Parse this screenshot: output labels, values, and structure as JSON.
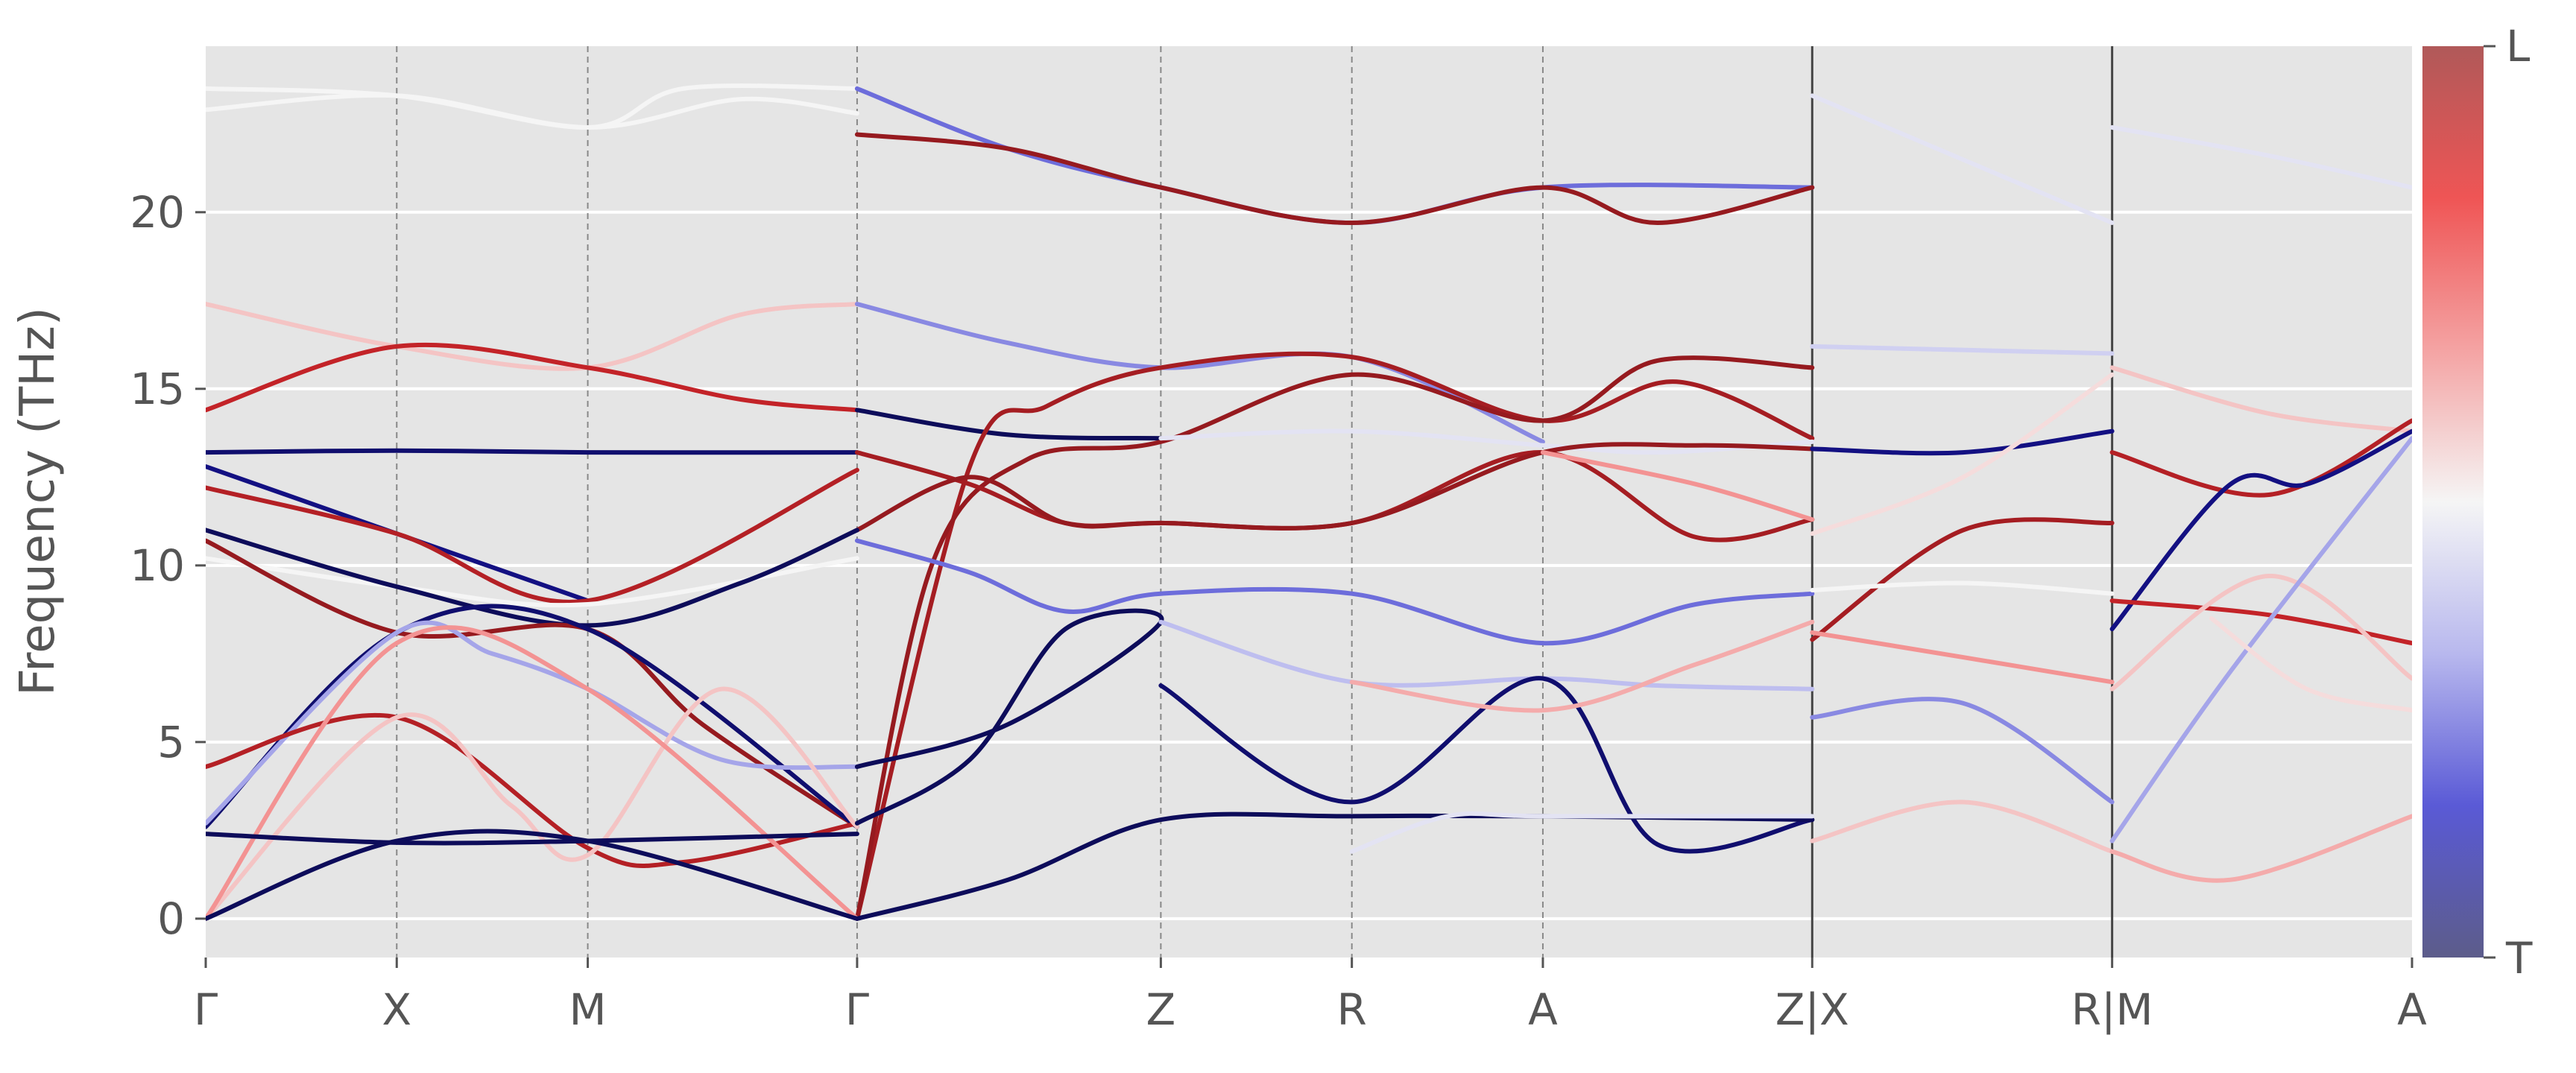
{
  "chart_data": {
    "type": "line",
    "title": "",
    "xlabel": "",
    "ylabel": "Frequency (THz)",
    "ylim": [
      -1.1,
      24.7
    ],
    "yticks": [
      0,
      5,
      10,
      15,
      20
    ],
    "grid": true,
    "axes_background": "#e5e5e5",
    "high_symmetry_points": [
      {
        "label": "Γ",
        "x": 0.0
      },
      {
        "label": "X",
        "x": 1.0
      },
      {
        "label": "M",
        "x": 2.0
      },
      {
        "label": "Γ",
        "x": 3.41
      },
      {
        "label": "Z",
        "x": 5.0
      },
      {
        "label": "R",
        "x": 6.0
      },
      {
        "label": "A",
        "x": 7.0
      },
      {
        "label": "Z|X",
        "x": 8.41
      },
      {
        "label": "R|M",
        "x": 9.98
      },
      {
        "label": "A",
        "x": 11.55
      }
    ],
    "xlim": [
      0,
      11.55
    ],
    "path_breaks": [
      8.41,
      9.98
    ],
    "colorbar": {
      "top_label": "L",
      "bottom_label": "T",
      "colormap": [
        "#5c5c8a",
        "#5a5ad6",
        "#b8b8ee",
        "#f5f5f5",
        "#f4a3a3",
        "#ef5555",
        "#b05959"
      ]
    },
    "series": [
      {
        "c": 0.5,
        "pts": [
          [
            0,
            23.5
          ],
          [
            1,
            23.3
          ],
          [
            2,
            22.4
          ],
          [
            2.5,
            23.5
          ],
          [
            3.41,
            23.5
          ]
        ]
      },
      {
        "c": 0.5,
        "pts": [
          [
            0,
            22.9
          ],
          [
            1,
            23.3
          ],
          [
            2,
            22.4
          ],
          [
            2.8,
            23.2
          ],
          [
            3.41,
            22.8
          ]
        ]
      },
      {
        "c": 0.2,
        "pts": [
          [
            3.41,
            23.5
          ],
          [
            4.2,
            21.8
          ],
          [
            5,
            20.7
          ],
          [
            6,
            19.7
          ],
          [
            7,
            20.7
          ],
          [
            8.41,
            20.7
          ]
        ]
      },
      {
        "c": 0.9,
        "pts": [
          [
            3.41,
            22.2
          ],
          [
            4.2,
            21.8
          ],
          [
            5,
            20.7
          ],
          [
            6,
            19.7
          ],
          [
            7,
            20.7
          ],
          [
            7.6,
            19.7
          ],
          [
            8.41,
            20.7
          ]
        ]
      },
      {
        "c": 0.45,
        "pts": [
          [
            8.41,
            23.3
          ],
          [
            9.98,
            19.7
          ]
        ]
      },
      {
        "c": 0.45,
        "pts": [
          [
            9.98,
            22.4
          ],
          [
            10.8,
            21.6
          ],
          [
            11.55,
            20.7
          ]
        ]
      },
      {
        "c": 0.6,
        "pts": [
          [
            0,
            17.4
          ],
          [
            1,
            16.2
          ],
          [
            2,
            15.6
          ],
          [
            2.8,
            17.1
          ],
          [
            3.41,
            17.4
          ]
        ]
      },
      {
        "c": 0.75,
        "pts": [
          [
            0,
            14.4
          ],
          [
            1,
            16.2
          ],
          [
            2,
            15.6
          ],
          [
            2.8,
            14.7
          ],
          [
            3.41,
            14.4
          ]
        ]
      },
      {
        "c": 0.25,
        "pts": [
          [
            3.41,
            17.4
          ],
          [
            4.2,
            16.3
          ],
          [
            5,
            15.6
          ],
          [
            6,
            15.9
          ],
          [
            7,
            13.5
          ]
        ]
      },
      {
        "c": 0.05,
        "pts": [
          [
            3.41,
            14.4
          ],
          [
            4.2,
            13.7
          ],
          [
            5,
            13.6
          ]
        ]
      },
      {
        "c": 0.85,
        "pts": [
          [
            3.41,
            0
          ],
          [
            4.0,
            12.8
          ],
          [
            4.4,
            14.5
          ],
          [
            5,
            15.6
          ],
          [
            6,
            15.9
          ],
          [
            7,
            14.1
          ],
          [
            7.7,
            15.2
          ],
          [
            8.41,
            13.6
          ]
        ]
      },
      {
        "c": 0.9,
        "pts": [
          [
            3.41,
            0
          ],
          [
            3.8,
            10.0
          ],
          [
            4.3,
            13.0
          ],
          [
            5,
            13.5
          ],
          [
            6,
            15.4
          ],
          [
            7,
            14.1
          ],
          [
            7.6,
            15.8
          ],
          [
            8.41,
            15.6
          ]
        ]
      },
      {
        "c": 0.45,
        "pts": [
          [
            5,
            13.6
          ],
          [
            6,
            13.8
          ],
          [
            7,
            13.4
          ],
          [
            7.6,
            13.2
          ],
          [
            8.41,
            13.5
          ]
        ]
      },
      {
        "c": 0.1,
        "pts": [
          [
            0,
            13.2
          ],
          [
            1,
            13.25
          ],
          [
            2,
            13.2
          ],
          [
            3.41,
            13.2
          ]
        ]
      },
      {
        "c": 0.15,
        "pts": [
          [
            0,
            12.8
          ],
          [
            1,
            10.9
          ],
          [
            2,
            9.0
          ]
        ]
      },
      {
        "c": 0.8,
        "pts": [
          [
            0,
            12.2
          ],
          [
            1,
            10.9
          ],
          [
            2,
            9.0
          ],
          [
            3.41,
            12.7
          ]
        ]
      },
      {
        "c": 0.5,
        "pts": [
          [
            0,
            10.2
          ],
          [
            1,
            9.4
          ],
          [
            2,
            8.9
          ],
          [
            3.41,
            10.2
          ]
        ]
      },
      {
        "c": 0.85,
        "pts": [
          [
            3.41,
            13.2
          ],
          [
            4.0,
            12.3
          ],
          [
            4.5,
            11.2
          ],
          [
            5,
            11.2
          ],
          [
            6,
            11.2
          ],
          [
            7,
            13.2
          ],
          [
            7.8,
            10.8
          ],
          [
            8.41,
            11.3
          ]
        ]
      },
      {
        "c": 0.9,
        "pts": [
          [
            3.41,
            11.0
          ],
          [
            4.0,
            12.5
          ],
          [
            4.5,
            11.2
          ],
          [
            5,
            11.2
          ],
          [
            6,
            11.2
          ],
          [
            7,
            13.2
          ],
          [
            7.8,
            13.4
          ],
          [
            8.41,
            13.3
          ]
        ]
      },
      {
        "c": 0.7,
        "pts": [
          [
            7,
            13.2
          ],
          [
            7.8,
            12.3
          ],
          [
            8.41,
            11.3
          ]
        ]
      },
      {
        "c": 0.4,
        "pts": [
          [
            8.41,
            16.2
          ],
          [
            9.98,
            16.0
          ]
        ]
      },
      {
        "c": 0.15,
        "pts": [
          [
            8.41,
            13.3
          ],
          [
            9.2,
            13.2
          ],
          [
            9.98,
            13.8
          ]
        ]
      },
      {
        "c": 0.85,
        "pts": [
          [
            8.41,
            7.9
          ],
          [
            9.2,
            11.0
          ],
          [
            9.98,
            11.2
          ]
        ]
      },
      {
        "c": 0.55,
        "pts": [
          [
            8.41,
            10.9
          ],
          [
            9.2,
            12.5
          ],
          [
            9.98,
            15.4
          ]
        ]
      },
      {
        "c": 0.6,
        "pts": [
          [
            9.98,
            15.6
          ],
          [
            10.8,
            14.3
          ],
          [
            11.55,
            13.8
          ]
        ]
      },
      {
        "c": 0.8,
        "pts": [
          [
            9.98,
            13.2
          ],
          [
            10.8,
            12.0
          ],
          [
            11.55,
            14.1
          ]
        ]
      },
      {
        "c": 0.05,
        "pts": [
          [
            0,
            11.0
          ],
          [
            1,
            9.4
          ],
          [
            2,
            8.3
          ],
          [
            2.8,
            9.5
          ],
          [
            3.41,
            11.0
          ]
        ]
      },
      {
        "c": 0.9,
        "pts": [
          [
            0,
            10.7
          ],
          [
            1,
            8.1
          ],
          [
            2,
            8.2
          ],
          [
            2.6,
            5.5
          ],
          [
            3.41,
            2.6
          ]
        ]
      },
      {
        "c": 0.1,
        "pts": [
          [
            0,
            2.6
          ],
          [
            1,
            8.1
          ],
          [
            2,
            8.2
          ],
          [
            3.41,
            2.6
          ]
        ]
      },
      {
        "c": 0.3,
        "pts": [
          [
            0,
            2.7
          ],
          [
            1,
            8.1
          ],
          [
            1.5,
            7.5
          ],
          [
            2,
            6.5
          ],
          [
            2.7,
            4.5
          ],
          [
            3.41,
            4.3
          ]
        ]
      },
      {
        "c": 0.8,
        "pts": [
          [
            0,
            4.3
          ],
          [
            1,
            5.7
          ],
          [
            2,
            2.0
          ],
          [
            2.5,
            1.6
          ],
          [
            3.41,
            2.7
          ]
        ]
      },
      {
        "c": 0.6,
        "pts": [
          [
            0,
            0
          ],
          [
            1,
            5.7
          ],
          [
            1.6,
            3.2
          ],
          [
            2,
            1.8
          ],
          [
            2.7,
            6.5
          ],
          [
            3.41,
            2.6
          ]
        ]
      },
      {
        "c": 0.7,
        "pts": [
          [
            0,
            0
          ],
          [
            1,
            7.8
          ],
          [
            2,
            6.5
          ],
          [
            3.41,
            0
          ]
        ]
      },
      {
        "c": 0.05,
        "pts": [
          [
            0,
            0
          ],
          [
            1,
            2.2
          ],
          [
            2,
            2.2
          ],
          [
            3.41,
            0
          ]
        ]
      },
      {
        "c": 0.05,
        "pts": [
          [
            0,
            2.4
          ],
          [
            1,
            2.15
          ],
          [
            2,
            2.2
          ],
          [
            3.41,
            2.4
          ]
        ]
      },
      {
        "c": 0.2,
        "pts": [
          [
            3.41,
            10.7
          ],
          [
            4.0,
            9.8
          ],
          [
            4.5,
            8.7
          ],
          [
            5,
            9.2
          ],
          [
            6,
            9.2
          ],
          [
            7,
            7.8
          ],
          [
            7.8,
            8.9
          ],
          [
            8.41,
            9.2
          ]
        ]
      },
      {
        "c": 0.05,
        "pts": [
          [
            3.41,
            4.3
          ],
          [
            4.2,
            5.5
          ],
          [
            5,
            8.4
          ],
          [
            4.5,
            8.2
          ],
          [
            4.0,
            4.5
          ],
          [
            3.41,
            2.7
          ]
        ]
      },
      {
        "c": 0.35,
        "pts": [
          [
            5,
            8.4
          ],
          [
            6,
            6.7
          ],
          [
            7,
            6.8
          ],
          [
            7.6,
            6.6
          ],
          [
            8.41,
            6.5
          ]
        ]
      },
      {
        "c": 0.1,
        "pts": [
          [
            5,
            6.6
          ],
          [
            6,
            3.3
          ],
          [
            7,
            6.8
          ],
          [
            7.6,
            2.1
          ],
          [
            8.41,
            2.8
          ]
        ]
      },
      {
        "c": 0.05,
        "pts": [
          [
            3.41,
            0
          ],
          [
            4.2,
            1.1
          ],
          [
            5,
            2.8
          ],
          [
            6,
            2.9
          ],
          [
            7,
            2.9
          ],
          [
            8.41,
            2.8
          ]
        ]
      },
      {
        "c": 0.65,
        "pts": [
          [
            6,
            6.7
          ],
          [
            7,
            5.9
          ],
          [
            7.8,
            7.2
          ],
          [
            8.41,
            8.4
          ]
        ]
      },
      {
        "c": 0.45,
        "pts": [
          [
            6,
            1.9
          ],
          [
            6.5,
            2.9
          ],
          [
            7,
            2.9
          ],
          [
            8.41,
            2.9
          ]
        ]
      },
      {
        "c": 0.5,
        "pts": [
          [
            8.41,
            9.3
          ],
          [
            9.2,
            9.5
          ],
          [
            9.98,
            9.2
          ]
        ]
      },
      {
        "c": 0.7,
        "pts": [
          [
            8.41,
            8.1
          ],
          [
            9.2,
            7.4
          ],
          [
            9.98,
            6.7
          ]
        ]
      },
      {
        "c": 0.25,
        "pts": [
          [
            8.41,
            5.7
          ],
          [
            9.2,
            6.1
          ],
          [
            9.98,
            3.3
          ]
        ]
      },
      {
        "c": 0.6,
        "pts": [
          [
            8.41,
            2.2
          ],
          [
            9.2,
            3.3
          ],
          [
            9.98,
            1.9
          ]
        ]
      },
      {
        "c": 0.15,
        "pts": [
          [
            9.98,
            8.2
          ],
          [
            10.6,
            12.3
          ],
          [
            11.0,
            12.3
          ],
          [
            11.55,
            13.8
          ]
        ]
      },
      {
        "c": 0.75,
        "pts": [
          [
            9.98,
            9.0
          ],
          [
            10.8,
            8.6
          ],
          [
            11.55,
            7.8
          ]
        ]
      },
      {
        "c": 0.6,
        "pts": [
          [
            9.98,
            6.5
          ],
          [
            10.8,
            9.7
          ],
          [
            11.55,
            6.8
          ]
        ]
      },
      {
        "c": 0.3,
        "pts": [
          [
            9.98,
            2.2
          ],
          [
            10.6,
            7.0
          ],
          [
            11.55,
            13.6
          ]
        ]
      },
      {
        "c": 0.65,
        "pts": [
          [
            9.98,
            1.9
          ],
          [
            10.6,
            1.1
          ],
          [
            11.55,
            2.9
          ]
        ]
      },
      {
        "c": 0.55,
        "pts": [
          [
            10.5,
            8.5
          ],
          [
            11.0,
            6.5
          ],
          [
            11.55,
            5.9
          ]
        ]
      }
    ]
  }
}
